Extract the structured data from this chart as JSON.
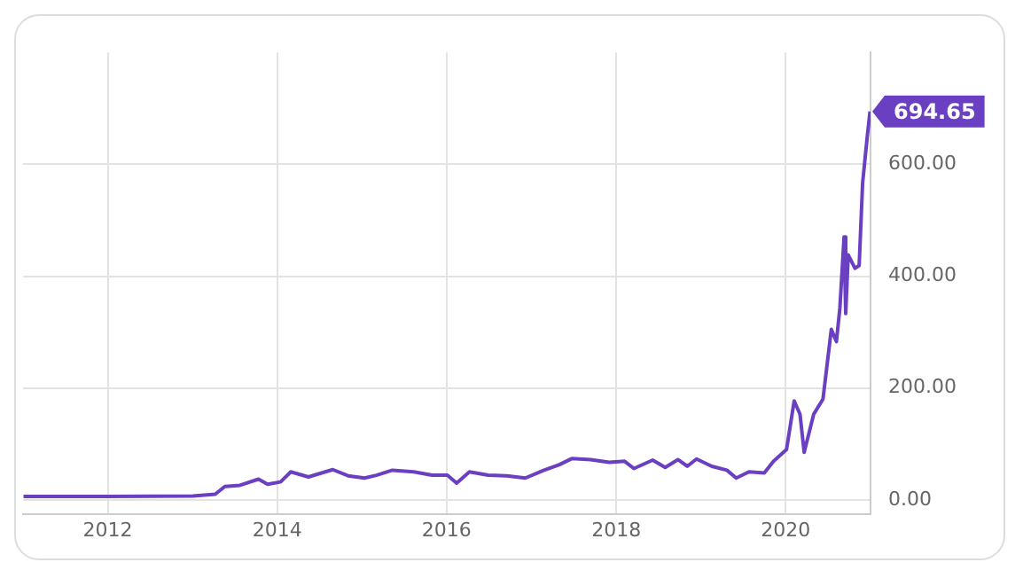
{
  "chart_data": {
    "type": "line",
    "x": [
      "2011-01-03",
      "2012-01-03",
      "2013-01-02",
      "2013-04-08",
      "2013-05-20",
      "2013-07-24",
      "2013-10-12",
      "2013-11-20",
      "2014-01-15",
      "2014-02-28",
      "2014-05-15",
      "2014-08-28",
      "2014-11-02",
      "2015-01-12",
      "2015-03-04",
      "2015-05-12",
      "2015-08-12",
      "2015-10-30",
      "2016-01-04",
      "2016-02-13",
      "2016-04-08",
      "2016-06-28",
      "2016-09-16",
      "2016-12-05",
      "2017-02-24",
      "2017-05-01",
      "2017-06-25",
      "2017-09-13",
      "2017-12-02",
      "2018-02-06",
      "2018-03-18",
      "2018-06-07",
      "2018-07-31",
      "2018-09-24",
      "2018-11-03",
      "2018-12-13",
      "2019-02-17",
      "2019-04-23",
      "2019-06-02",
      "2019-07-27",
      "2019-10-01",
      "2019-11-10",
      "2020-01-05",
      "2020-02-07",
      "2020-03-03",
      "2020-03-21",
      "2020-05-01",
      "2020-06-10",
      "2020-07-16",
      "2020-08-07",
      "2020-08-22",
      "2020-09-09",
      "2020-09-16",
      "2020-09-27",
      "2020-10-26",
      "2020-11-13",
      "2020-11-28",
      "2020-12-18",
      "2020-12-30"
    ],
    "series": [
      {
        "color": "#6a3fc1",
        "values": [
          6,
          6,
          7,
          10,
          24,
          26,
          37,
          28,
          32,
          50,
          41,
          54,
          43,
          39,
          44,
          53,
          50,
          44,
          44,
          30,
          50,
          44,
          43,
          39,
          53,
          63,
          74,
          72,
          67,
          69,
          56,
          71,
          58,
          72,
          60,
          73,
          60,
          53,
          39,
          50,
          48,
          69,
          90,
          177,
          153,
          85,
          153,
          180,
          305,
          283,
          343,
          470,
          333,
          438,
          414,
          419,
          567,
          650,
          694.65
        ],
        "value_labels": [
          null,
          null,
          null,
          null,
          null,
          null,
          null,
          null,
          null,
          null,
          null,
          null,
          null,
          null,
          null,
          null,
          null,
          null,
          null,
          null,
          null,
          null,
          null,
          null,
          null,
          null,
          null,
          null,
          null,
          null,
          null,
          null,
          null,
          null,
          null,
          null,
          null,
          null,
          null,
          null,
          null,
          null,
          null,
          null,
          null,
          null,
          null,
          null,
          null,
          null,
          null,
          null,
          null,
          null,
          null,
          null,
          null,
          null,
          "694.65"
        ]
      }
    ],
    "xlim": [
      "2011-01-01",
      "2021-01-01"
    ],
    "xticks": [
      {
        "value": "2012-01-01",
        "label": "2012"
      },
      {
        "value": "2014-01-01",
        "label": "2014"
      },
      {
        "value": "2016-01-01",
        "label": "2016"
      },
      {
        "value": "2018-01-01",
        "label": "2018"
      },
      {
        "value": "2020-01-01",
        "label": "2020"
      }
    ],
    "ylim": [
      -25,
      800
    ],
    "yticks": [
      {
        "value": 0,
        "label": "0.00"
      },
      {
        "value": 200,
        "label": "200.00"
      },
      {
        "value": 400,
        "label": "400.00"
      },
      {
        "value": 600,
        "label": "600.00"
      }
    ],
    "grid": true,
    "marker": "none",
    "line_style": "solid"
  }
}
